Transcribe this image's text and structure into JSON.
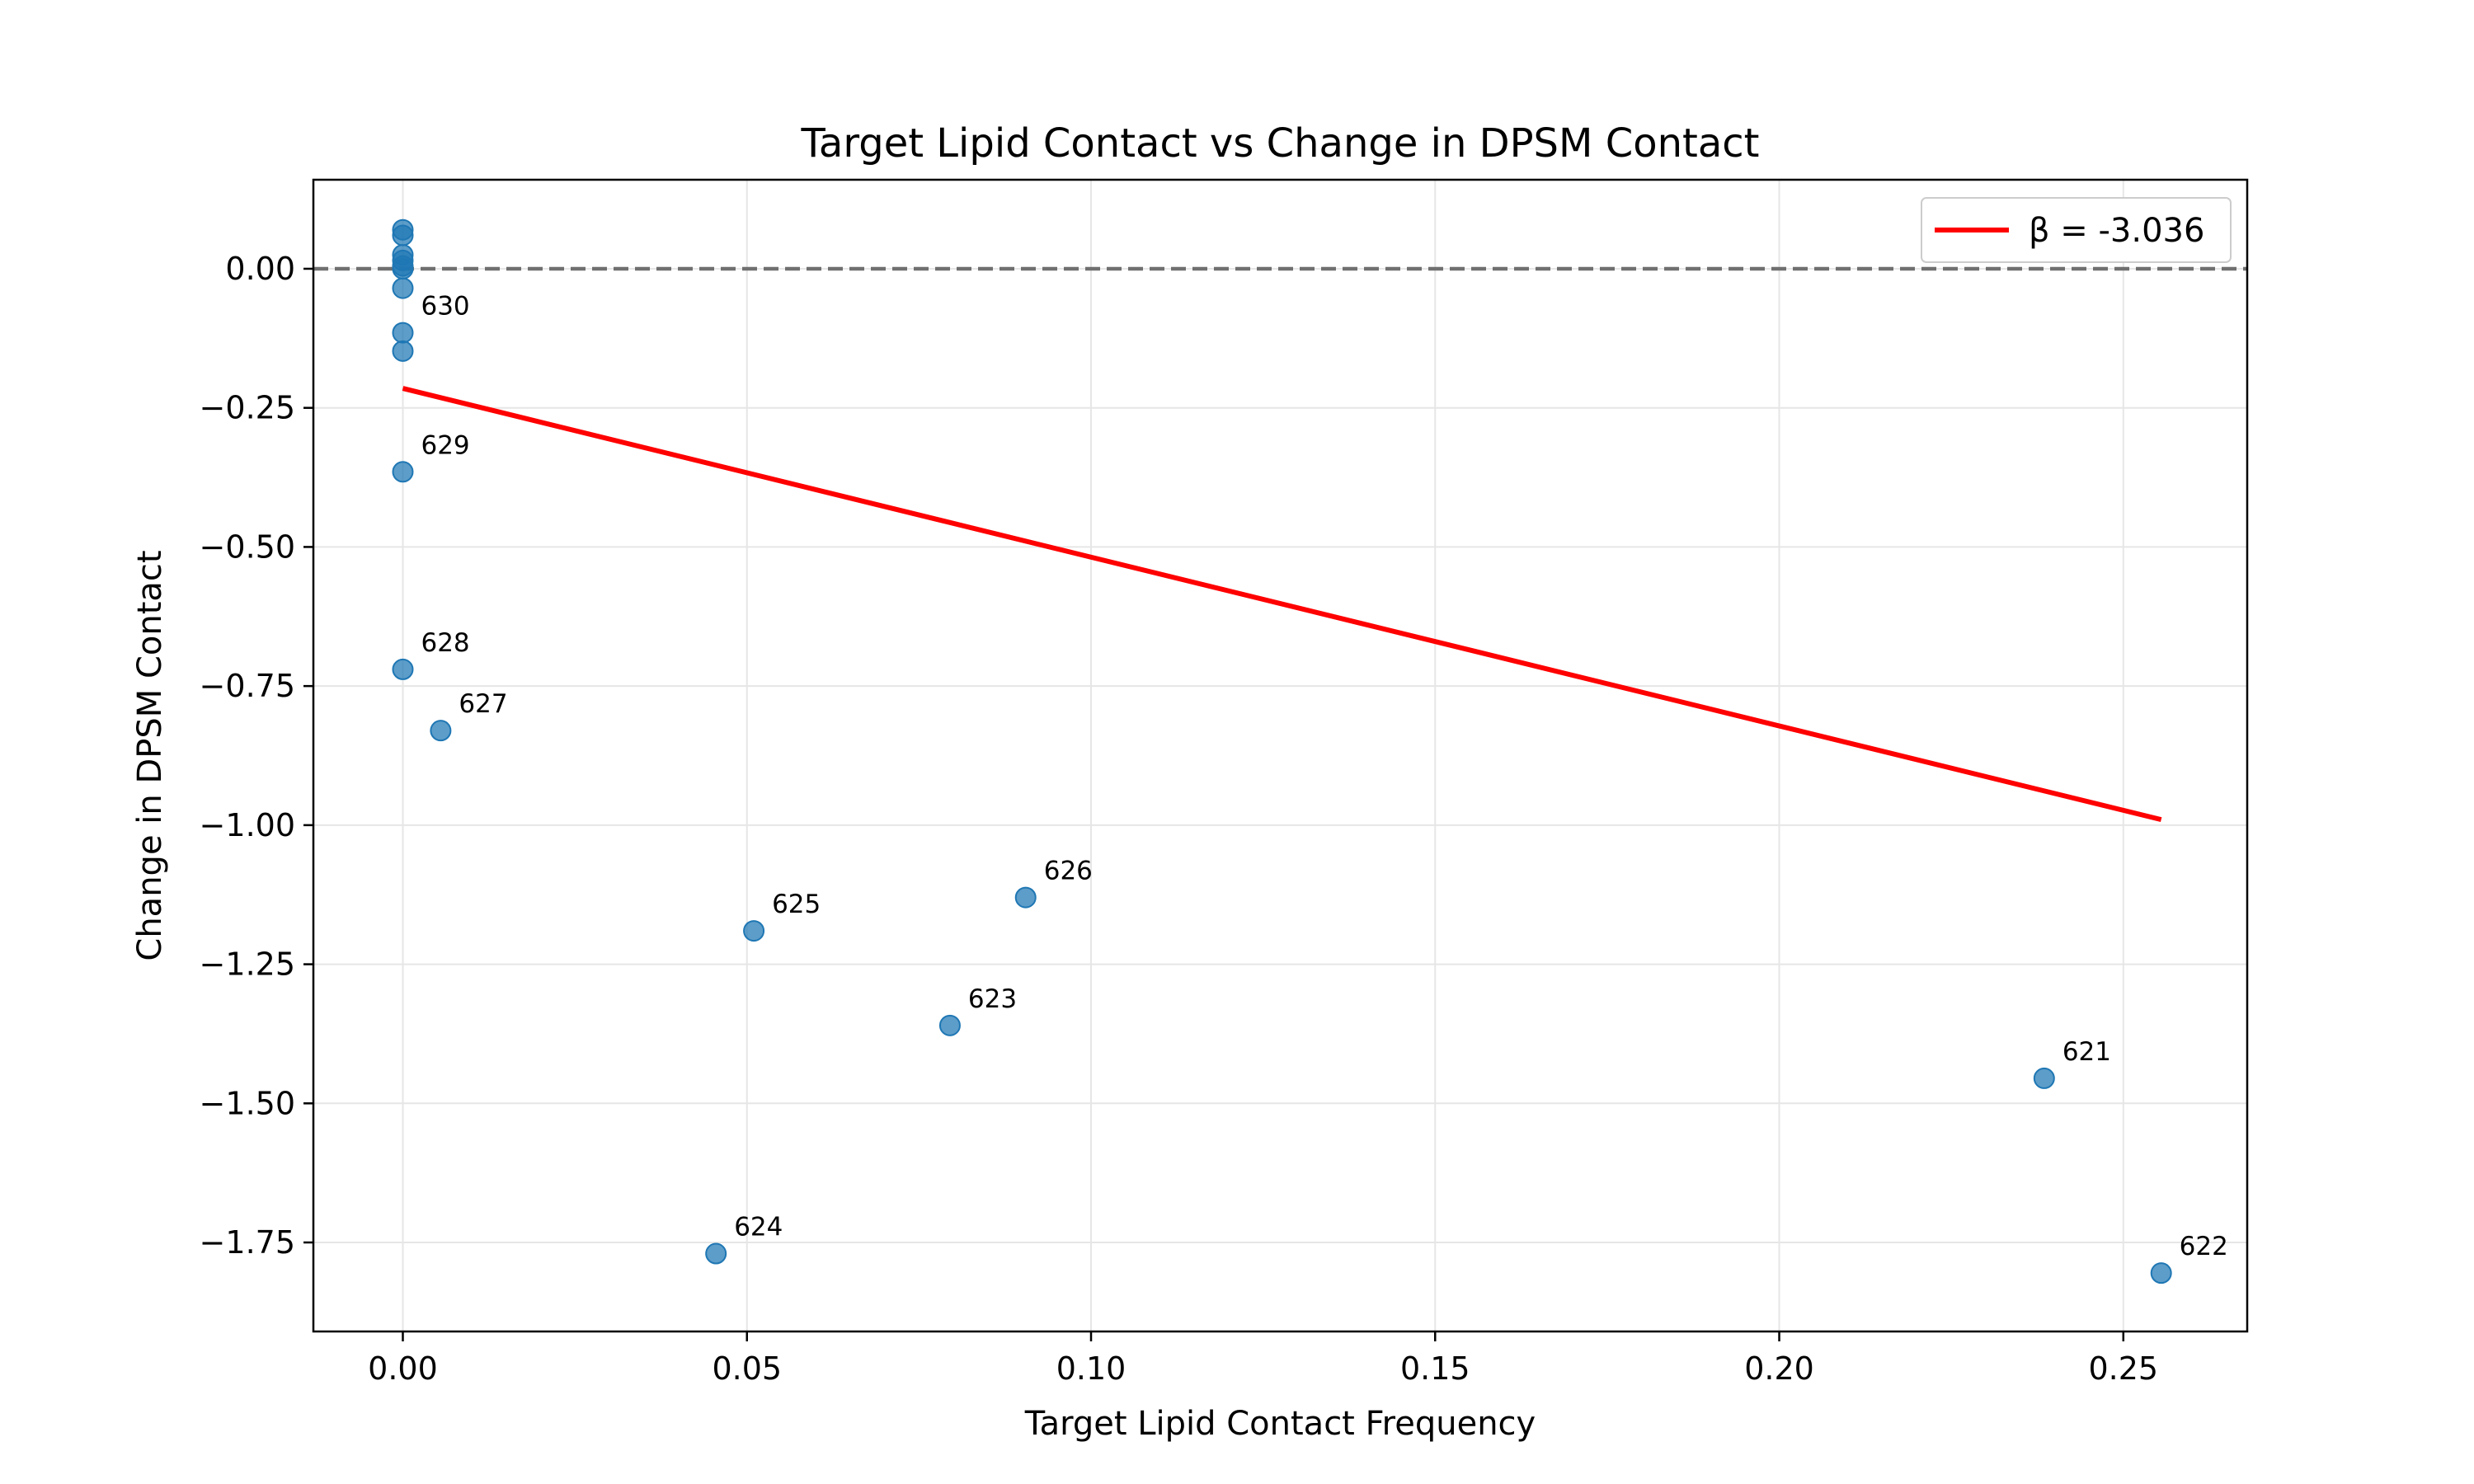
{
  "chart_data": {
    "type": "scatter",
    "title": "Target Lipid Contact vs Change in DPSM Contact",
    "xlabel": "Target Lipid Contact Frequency",
    "ylabel": "Change in DPSM Contact",
    "xlim": [
      -0.013,
      0.268
    ],
    "ylim": [
      -1.91,
      0.16
    ],
    "xticks": [
      0.0,
      0.05,
      0.1,
      0.15,
      0.2,
      0.25
    ],
    "xtick_labels": [
      "0.00",
      "0.05",
      "0.10",
      "0.15",
      "0.20",
      "0.25"
    ],
    "yticks": [
      0.0,
      -0.25,
      -0.5,
      -0.75,
      -1.0,
      -1.25,
      -1.5,
      -1.75
    ],
    "ytick_labels": [
      "0.00",
      "−0.25",
      "−0.50",
      "−0.75",
      "−1.00",
      "−1.25",
      "−1.50",
      "−1.75"
    ],
    "grid": true,
    "legend_position": "top-right",
    "reference_line": {
      "y": 0.0,
      "style": "dashed",
      "color": "#707070"
    },
    "points": [
      {
        "x": 0.0,
        "y": 0.07,
        "label": ""
      },
      {
        "x": 0.0,
        "y": 0.06,
        "label": ""
      },
      {
        "x": 0.0,
        "y": 0.025,
        "label": ""
      },
      {
        "x": 0.0,
        "y": 0.015,
        "label": ""
      },
      {
        "x": 0.0,
        "y": 0.005,
        "label": ""
      },
      {
        "x": 0.0,
        "y": 0.0,
        "label": ""
      },
      {
        "x": 0.0,
        "y": -0.035,
        "label": ""
      },
      {
        "x": 0.0,
        "y": -0.115,
        "label": "630"
      },
      {
        "x": 0.0,
        "y": -0.148,
        "label": ""
      },
      {
        "x": 0.0,
        "y": -0.365,
        "label": "629"
      },
      {
        "x": 0.0,
        "y": -0.72,
        "label": "628"
      },
      {
        "x": 0.0055,
        "y": -0.83,
        "label": "627"
      },
      {
        "x": 0.051,
        "y": -1.19,
        "label": "625"
      },
      {
        "x": 0.0905,
        "y": -1.13,
        "label": "626"
      },
      {
        "x": 0.0795,
        "y": -1.36,
        "label": "623"
      },
      {
        "x": 0.0455,
        "y": -1.77,
        "label": "624"
      },
      {
        "x": 0.2385,
        "y": -1.455,
        "label": "621"
      },
      {
        "x": 0.2555,
        "y": -1.805,
        "label": "622"
      }
    ],
    "fit_line": {
      "name": "β = -3.036",
      "x": [
        0.0,
        0.2555
      ],
      "y": [
        -0.215,
        -0.99
      ],
      "color": "#ff0000"
    },
    "point_color": "#1f77b4"
  }
}
